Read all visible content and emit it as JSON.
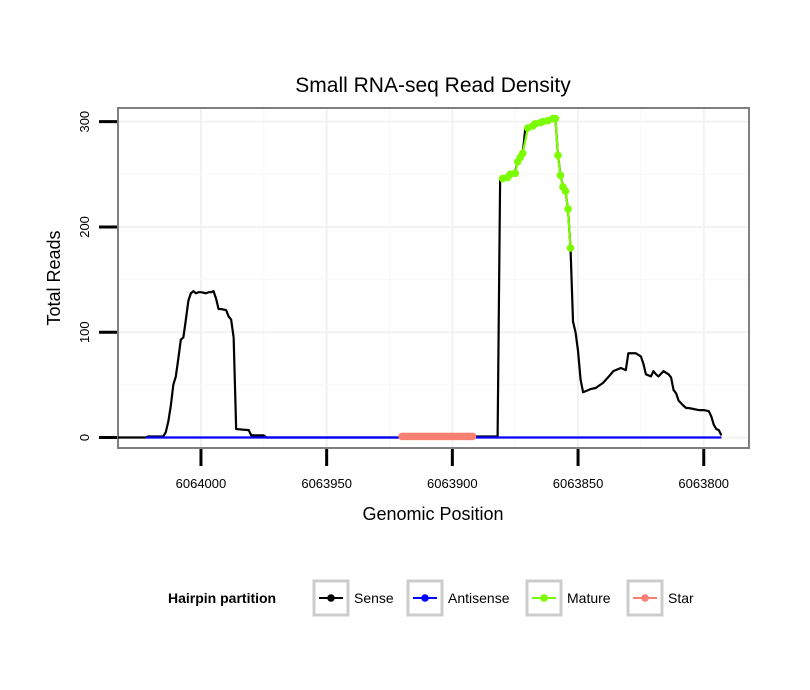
{
  "chart_data": {
    "type": "line",
    "title": "Small RNA-seq Read Density",
    "xlabel": "Genomic Position",
    "ylabel": "Total Reads",
    "x_reversed": true,
    "xlim": [
      6064033,
      6063782
    ],
    "ylim": [
      -10,
      313
    ],
    "x_ticks": [
      6064000,
      6063950,
      6063900,
      6063850,
      6063800
    ],
    "x_tick_labels": [
      "6064000",
      "6063950",
      "6063900",
      "6063850",
      "6063800"
    ],
    "y_ticks": [
      0,
      100,
      200,
      300
    ],
    "y_tick_labels": [
      "0",
      "100",
      "200",
      "300"
    ],
    "grid": true,
    "legend": {
      "title": "Hairpin partition",
      "position": "bottom",
      "entries": [
        {
          "name": "Sense",
          "color": "#000000"
        },
        {
          "name": "Antisense",
          "color": "#0000ff"
        },
        {
          "name": "Mature",
          "color": "#7cfc00"
        },
        {
          "name": "Star",
          "color": "#fa8072"
        }
      ]
    },
    "series": [
      {
        "name": "Sense",
        "color": "#000000",
        "markers": false,
        "points": [
          [
            6064033,
            0
          ],
          [
            6064022,
            0
          ],
          [
            6064021,
            1
          ],
          [
            6064015,
            1
          ],
          [
            6064014,
            5
          ],
          [
            6064013,
            15
          ],
          [
            6064012,
            30
          ],
          [
            6064011,
            50
          ],
          [
            6064010,
            58
          ],
          [
            6064009,
            75
          ],
          [
            6064008,
            93
          ],
          [
            6064007,
            95
          ],
          [
            6064006,
            112
          ],
          [
            6064005,
            130
          ],
          [
            6064004,
            137
          ],
          [
            6064003,
            139
          ],
          [
            6064002,
            137
          ],
          [
            6064001,
            138
          ],
          [
            6064000,
            138
          ],
          [
            6063998,
            137
          ],
          [
            6063997,
            138
          ],
          [
            6063996,
            138
          ],
          [
            6063995,
            139
          ],
          [
            6063994,
            132
          ],
          [
            6063993,
            122
          ],
          [
            6063992,
            122
          ],
          [
            6063990,
            121
          ],
          [
            6063989,
            115
          ],
          [
            6063988,
            112
          ],
          [
            6063987,
            95
          ],
          [
            6063986,
            8
          ],
          [
            6063981,
            7
          ],
          [
            6063980,
            2
          ],
          [
            6063975,
            2
          ],
          [
            6063974,
            0
          ],
          [
            6063910,
            0
          ],
          [
            6063908,
            1
          ],
          [
            6063882,
            1
          ],
          [
            6063881,
            245
          ],
          [
            6063877,
            250
          ],
          [
            6063875,
            253
          ],
          [
            6063874,
            262
          ],
          [
            6063872,
            270
          ],
          [
            6063871,
            293
          ],
          [
            6063869,
            297
          ],
          [
            6063865,
            300
          ],
          [
            6063862,
            301
          ],
          [
            6063861,
            303
          ],
          [
            6063859,
            303
          ],
          [
            6063858,
            268
          ],
          [
            6063857,
            250
          ],
          [
            6063856,
            238
          ],
          [
            6063855,
            234
          ],
          [
            6063854,
            217
          ],
          [
            6063853,
            180
          ],
          [
            6063852,
            110
          ],
          [
            6063851,
            100
          ],
          [
            6063850,
            82
          ],
          [
            6063849,
            55
          ],
          [
            6063848,
            43
          ],
          [
            6063846,
            45
          ],
          [
            6063845,
            46
          ],
          [
            6063843,
            47
          ],
          [
            6063840,
            52
          ],
          [
            6063837,
            60
          ],
          [
            6063836,
            63
          ],
          [
            6063833,
            66
          ],
          [
            6063831,
            64
          ],
          [
            6063830,
            80
          ],
          [
            6063827,
            80
          ],
          [
            6063825,
            77
          ],
          [
            6063824,
            70
          ],
          [
            6063823,
            60
          ],
          [
            6063821,
            58
          ],
          [
            6063820,
            63
          ],
          [
            6063819,
            60
          ],
          [
            6063818,
            58
          ],
          [
            6063816,
            63
          ],
          [
            6063814,
            60
          ],
          [
            6063813,
            57
          ],
          [
            6063812,
            45
          ],
          [
            6063811,
            42
          ],
          [
            6063810,
            35
          ],
          [
            6063808,
            30
          ],
          [
            6063807,
            28
          ],
          [
            6063806,
            28
          ],
          [
            6063802,
            26
          ],
          [
            6063800,
            26
          ],
          [
            6063798,
            25
          ],
          [
            6063797,
            20
          ],
          [
            6063796,
            12
          ],
          [
            6063795,
            8
          ],
          [
            6063794,
            7
          ],
          [
            6063793,
            2
          ]
        ]
      },
      {
        "name": "Antisense",
        "color": "#0000ff",
        "markers": false,
        "points": [
          [
            6064022,
            0
          ],
          [
            6063793,
            0
          ]
        ]
      },
      {
        "name": "Mature",
        "color": "#7cfc00",
        "markers": true,
        "points": [
          [
            6063880,
            246
          ],
          [
            6063878,
            247
          ],
          [
            6063877,
            250
          ],
          [
            6063875,
            251
          ],
          [
            6063874,
            262
          ],
          [
            6063873,
            266
          ],
          [
            6063872,
            270
          ],
          [
            6063870,
            294
          ],
          [
            6063868,
            296
          ],
          [
            6063867,
            298
          ],
          [
            6063865,
            299
          ],
          [
            6063864,
            300
          ],
          [
            6063862,
            301
          ],
          [
            6063860,
            303
          ],
          [
            6063859,
            303
          ],
          [
            6063858,
            268
          ],
          [
            6063857,
            249
          ],
          [
            6063856,
            238
          ],
          [
            6063855,
            234
          ],
          [
            6063854,
            217
          ],
          [
            6063853,
            180
          ]
        ]
      },
      {
        "name": "Star",
        "color": "#fa8072",
        "markers": true,
        "points": [
          [
            6063920,
            1
          ],
          [
            6063919,
            1
          ],
          [
            6063918,
            1
          ],
          [
            6063917,
            1
          ],
          [
            6063916,
            1
          ],
          [
            6063915,
            1
          ],
          [
            6063914,
            1
          ],
          [
            6063913,
            1
          ],
          [
            6063912,
            1
          ],
          [
            6063911,
            1
          ],
          [
            6063910,
            1
          ],
          [
            6063909,
            1
          ],
          [
            6063908,
            1
          ],
          [
            6063907,
            1
          ],
          [
            6063906,
            1
          ],
          [
            6063905,
            1
          ],
          [
            6063904,
            1
          ],
          [
            6063903,
            1
          ],
          [
            6063902,
            1
          ],
          [
            6063901,
            1
          ],
          [
            6063900,
            1
          ],
          [
            6063899,
            1
          ],
          [
            6063898,
            1
          ],
          [
            6063897,
            1
          ],
          [
            6063896,
            1
          ],
          [
            6063895,
            1
          ],
          [
            6063894,
            1
          ],
          [
            6063893,
            1
          ],
          [
            6063892,
            1
          ]
        ]
      }
    ]
  }
}
